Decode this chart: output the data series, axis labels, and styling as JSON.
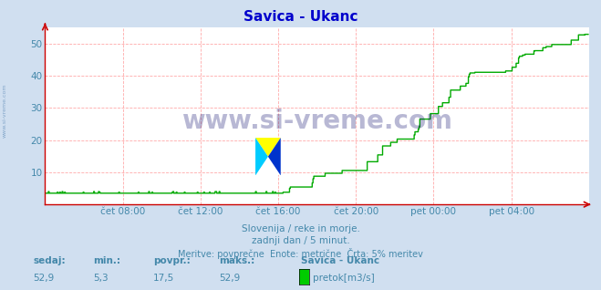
{
  "title": "Savica - Ukanc",
  "title_color": "#0000cc",
  "bg_color": "#d0dff0",
  "plot_bg_color": "#ffffff",
  "line_color": "#00aa00",
  "line_width": 1.0,
  "ylim": [
    0,
    55
  ],
  "yticks": [
    10,
    20,
    30,
    40,
    50
  ],
  "xlabel_color": "#4488aa",
  "grid_color_h": "#ffaaaa",
  "grid_color_v": "#ffaaaa",
  "axis_color": "#cc0000",
  "watermark": "www.si-vreme.com",
  "watermark_color": "#000066",
  "watermark_alpha": 0.28,
  "side_text": "www.si-vreme.com",
  "side_text_color": "#4477aa",
  "subtitle1": "Slovenija / reke in morje.",
  "subtitle2": "zadnji dan / 5 minut.",
  "subtitle3": "Meritve: povprečne  Enote: metrične  Črta: 5% meritev",
  "footer_label1": "sedaj:",
  "footer_label2": "min.:",
  "footer_label3": "povpr.:",
  "footer_label4": "maks.:",
  "footer_val1": "52,9",
  "footer_val2": "5,3",
  "footer_val3": "17,5",
  "footer_val4": "52,9",
  "footer_station": "Savica - Ukanc",
  "footer_legend": "pretok[m3/s]",
  "footer_legend_color": "#00cc00",
  "xtick_labels": [
    "čet 08:00",
    "čet 12:00",
    "čet 16:00",
    "čet 20:00",
    "pet 00:00",
    "pet 04:00"
  ],
  "xtick_positions": [
    96,
    192,
    288,
    384,
    480,
    576
  ],
  "num_points": 672,
  "flat_val": 3.5,
  "peak_val": 52.9
}
